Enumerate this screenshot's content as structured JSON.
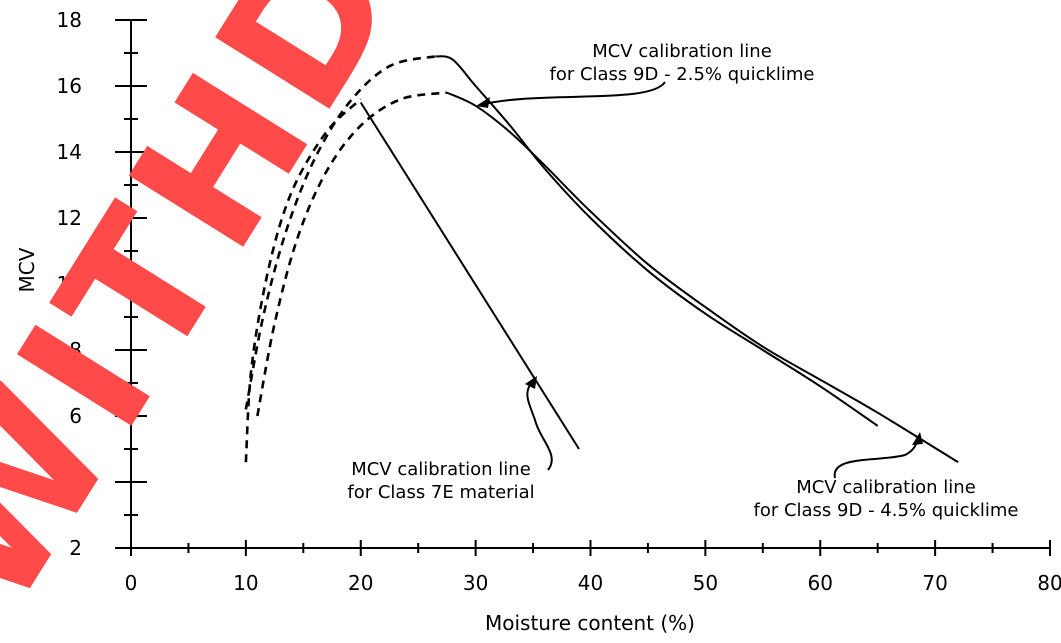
{
  "chart_data": {
    "type": "line",
    "xlabel": "Moisture content (%)",
    "ylabel": "MCV",
    "xlim": [
      0,
      80
    ],
    "ylim": [
      2,
      18
    ],
    "x_ticks": [
      0,
      10,
      20,
      30,
      40,
      50,
      60,
      70,
      80
    ],
    "y_ticks": [
      2,
      4,
      6,
      8,
      10,
      12,
      14,
      16,
      18
    ],
    "grid": false,
    "series": [
      {
        "id": "class-7e",
        "style": "solid",
        "points": [
          [
            20,
            15.5
          ],
          [
            39,
            5.0
          ]
        ]
      },
      {
        "id": "class-7e-dashed",
        "style": "dashed",
        "points": [
          [
            10,
            4.6
          ],
          [
            10.5,
            7.5
          ],
          [
            12,
            10.5
          ],
          [
            14,
            12.8
          ],
          [
            17,
            14.6
          ],
          [
            20,
            15.6
          ]
        ]
      },
      {
        "id": "class-9d-2-5",
        "style": "solid",
        "points": [
          [
            26.5,
            16.9
          ],
          [
            28,
            16.8
          ],
          [
            30,
            16.0
          ],
          [
            33,
            14.8
          ],
          [
            36,
            13.5
          ],
          [
            40,
            12.0
          ],
          [
            45,
            10.4
          ],
          [
            50,
            9.1
          ],
          [
            55,
            8.0
          ],
          [
            60,
            6.9
          ],
          [
            65,
            5.7
          ]
        ]
      },
      {
        "id": "class-9d-2-5-dashed",
        "style": "dashed",
        "points": [
          [
            10,
            6.2
          ],
          [
            11.5,
            9.0
          ],
          [
            13.5,
            11.6
          ],
          [
            16,
            13.8
          ],
          [
            19,
            15.5
          ],
          [
            22.5,
            16.6
          ],
          [
            26.5,
            16.9
          ]
        ]
      },
      {
        "id": "class-9d-4-5",
        "style": "solid",
        "points": [
          [
            27.5,
            15.8
          ],
          [
            30,
            15.4
          ],
          [
            33,
            14.6
          ],
          [
            36,
            13.6
          ],
          [
            40,
            12.2
          ],
          [
            45,
            10.6
          ],
          [
            50,
            9.3
          ],
          [
            55,
            8.1
          ],
          [
            60,
            7.1
          ],
          [
            65,
            6.1
          ],
          [
            72,
            4.6
          ]
        ]
      },
      {
        "id": "class-9d-4-5-dashed",
        "style": "dashed",
        "points": [
          [
            11,
            6.0
          ],
          [
            12.5,
            8.8
          ],
          [
            14.5,
            11.4
          ],
          [
            17,
            13.4
          ],
          [
            20,
            14.8
          ],
          [
            23.5,
            15.6
          ],
          [
            27.5,
            15.8
          ]
        ]
      }
    ],
    "annotations": [
      {
        "id": "annot-9d-2-5",
        "lines": [
          "MCV calibration line",
          "for Class 9D - 2.5% quicklime"
        ]
      },
      {
        "id": "annot-7e",
        "lines": [
          "MCV calibration line",
          "for Class 7E material"
        ]
      },
      {
        "id": "annot-9d-4-5",
        "lines": [
          "MCV calibration line",
          "for Class 9D - 4.5% quicklime"
        ]
      }
    ]
  },
  "watermark": {
    "text": "WITHDRAWN",
    "color": "#ff4a4a"
  }
}
